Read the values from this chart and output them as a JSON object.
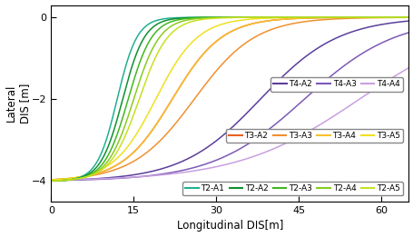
{
  "xlabel": "Longitudinal DIS[m]",
  "ylabel": "Lateral\nDIS [m]",
  "xlim": [
    0,
    65
  ],
  "ylim": [
    -4.5,
    0.3
  ],
  "xticks": [
    0,
    15,
    30,
    45,
    60
  ],
  "yticks": [
    -4,
    -2,
    0
  ],
  "x_max": 65,
  "curves": [
    {
      "label": "T4-A2",
      "color": "#5B3E9B",
      "midpoint": 38,
      "steepness": 0.14
    },
    {
      "label": "T4-A3",
      "color": "#7B5AB8",
      "midpoint": 46,
      "steepness": 0.12
    },
    {
      "label": "T4-A4",
      "color": "#C8A0E0",
      "midpoint": 56,
      "steepness": 0.09
    },
    {
      "label": "T3-A2",
      "color": "#E86020",
      "midpoint": 22,
      "steepness": 0.22
    },
    {
      "label": "T3-A3",
      "color": "#F09030",
      "midpoint": 26,
      "steepness": 0.18
    },
    {
      "label": "T3-A4",
      "color": "#F8C030",
      "midpoint": 22,
      "steepness": 0.22
    },
    {
      "label": "T3-A5",
      "color": "#F0E020",
      "midpoint": 19,
      "steepness": 0.26
    },
    {
      "label": "T2-A1",
      "color": "#20B090",
      "midpoint": 12,
      "steepness": 0.55
    },
    {
      "label": "T2-A2",
      "color": "#109030",
      "midpoint": 13,
      "steepness": 0.5
    },
    {
      "label": "T2-A3",
      "color": "#40B820",
      "midpoint": 14,
      "steepness": 0.46
    },
    {
      "label": "T2-A4",
      "color": "#88CC20",
      "midpoint": 15,
      "steepness": 0.42
    },
    {
      "label": "T2-A5",
      "color": "#C8E020",
      "midpoint": 16,
      "steepness": 0.38
    }
  ],
  "legend_groups": [
    [
      "T4-A2",
      "T4-A3",
      "T4-A4"
    ],
    [
      "T3-A2",
      "T3-A3",
      "T3-A4",
      "T3-A5"
    ],
    [
      "T2-A1",
      "T2-A2",
      "T2-A3",
      "T2-A4",
      "T2-A5"
    ]
  ]
}
